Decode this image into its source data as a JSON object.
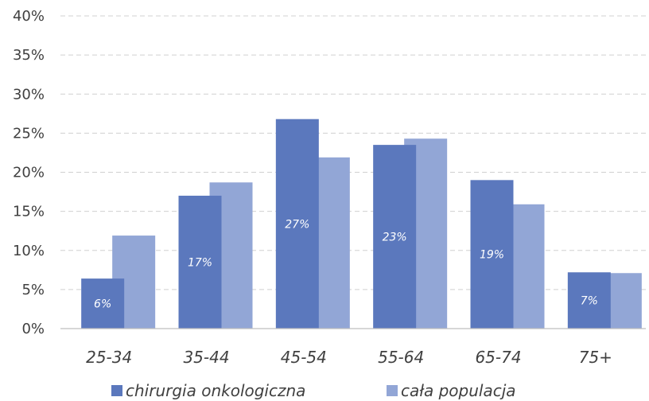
{
  "chart_data": {
    "type": "bar",
    "categories": [
      "25-34",
      "35-44",
      "45-54",
      "55-64",
      "65-74",
      "75+"
    ],
    "series": [
      {
        "name": "chirurgia onkologiczna",
        "values": [
          6.4,
          17.0,
          26.8,
          23.5,
          19.0,
          7.2
        ],
        "color": "#5b78bd",
        "labels": [
          "6%",
          "17%",
          "27%",
          "23%",
          "19%",
          "7%"
        ]
      },
      {
        "name": "cała populacja",
        "values": [
          11.9,
          18.7,
          21.9,
          24.3,
          15.9,
          7.1
        ],
        "color": "#92a6d6"
      }
    ],
    "ylim": [
      0,
      40
    ],
    "yticks": [
      "0%",
      "5%",
      "10%",
      "15%",
      "20%",
      "25%",
      "30%",
      "35%",
      "40%"
    ],
    "grid": true,
    "legend_position": "bottom"
  }
}
